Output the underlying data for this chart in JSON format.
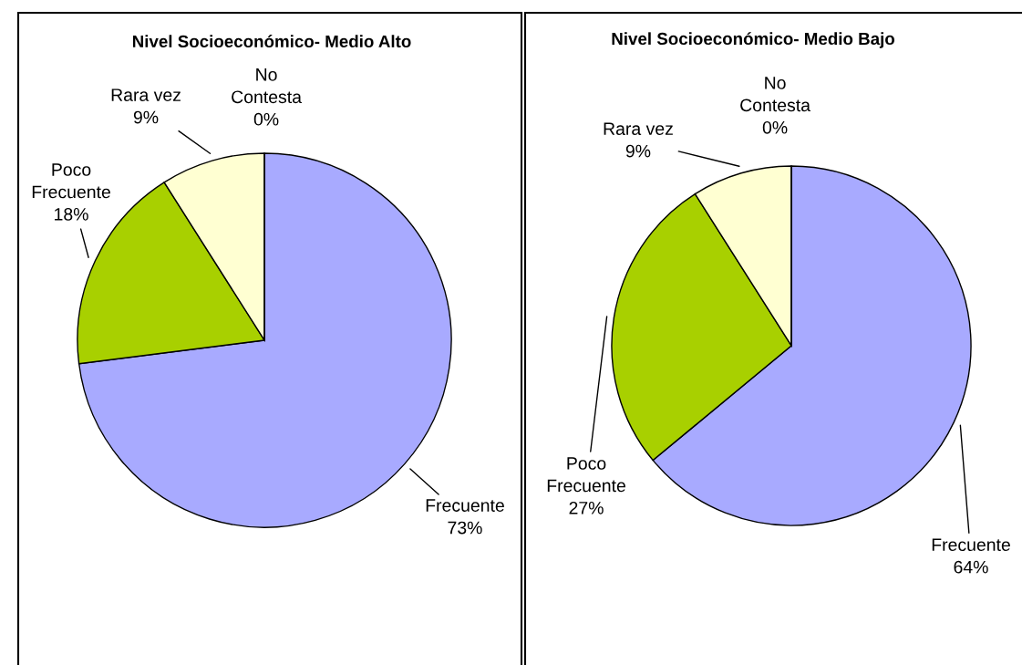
{
  "chart_data": [
    {
      "type": "pie",
      "title": "Nivel Socioeconómico- Medio Alto",
      "categories": [
        "Frecuente",
        "Poco Frecuente",
        "Rara vez",
        "No Contesta"
      ],
      "values": [
        73,
        18,
        9,
        0
      ],
      "colors": [
        "#a8aaff",
        "#a8d000",
        "#ffffd2",
        "#000000"
      ],
      "value_labels": [
        "73%",
        "18%",
        "9%",
        "0%"
      ]
    },
    {
      "type": "pie",
      "title": "Nivel Socioeconómico- Medio Bajo",
      "categories": [
        "Frecuente",
        "Poco Frecuente",
        "Rara vez",
        "No Contesta"
      ],
      "values": [
        64,
        27,
        9,
        0
      ],
      "colors": [
        "#a8aaff",
        "#a8d000",
        "#ffffd2",
        "#000000"
      ],
      "value_labels": [
        "64%",
        "27%",
        "9%",
        "0%"
      ]
    }
  ]
}
